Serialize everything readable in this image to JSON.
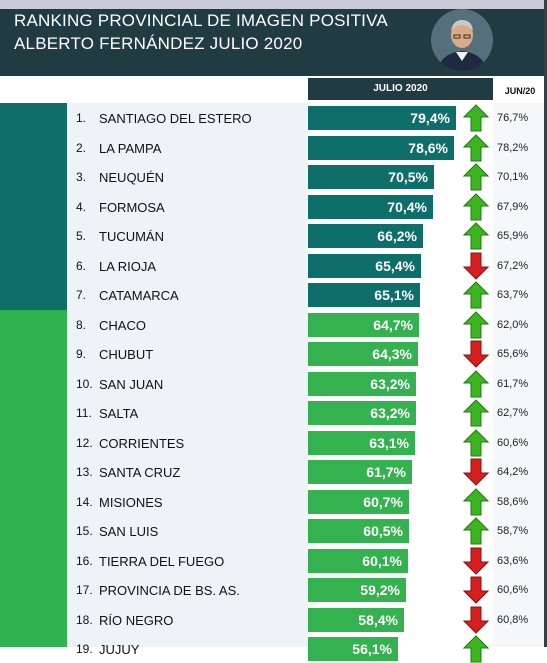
{
  "header": {
    "title_line1": "RANKING PROVINCIAL DE IMAGEN POSITIVA",
    "title_line2": "ALBERTO FERNÁNDEZ JULIO 2020"
  },
  "columns": {
    "current": "JULIO 2020",
    "previous": "JUN/20"
  },
  "colors": {
    "header": "#213b43",
    "teal": "#0e6e6a",
    "green": "#34b24f",
    "up": "#3cb521",
    "down": "#d61f1f"
  },
  "chart_data": {
    "type": "bar",
    "title": "RANKING PROVINCIAL DE IMAGEN POSITIVA ALBERTO FERNÁNDEZ JULIO 2020",
    "unit": "%",
    "rows": [
      {
        "rank": "1.",
        "name": "SANTIAGO DEL ESTERO",
        "value": 79.4,
        "label": "79,4%",
        "prev": "76,7%",
        "trend": "up",
        "group": "teal"
      },
      {
        "rank": "2.",
        "name": "LA PAMPA",
        "value": 78.6,
        "label": "78,6%",
        "prev": "78,2%",
        "trend": "up",
        "group": "teal"
      },
      {
        "rank": "3.",
        "name": "NEUQUÉN",
        "value": 70.5,
        "label": "70,5%",
        "prev": "70,1%",
        "trend": "up",
        "group": "teal"
      },
      {
        "rank": "4.",
        "name": "FORMOSA",
        "value": 70.4,
        "label": "70,4%",
        "prev": "67,9%",
        "trend": "up",
        "group": "teal"
      },
      {
        "rank": "5.",
        "name": "TUCUMÁN",
        "value": 66.2,
        "label": "66,2%",
        "prev": "65,9%",
        "trend": "up",
        "group": "teal"
      },
      {
        "rank": "6.",
        "name": "LA RIOJA",
        "value": 65.4,
        "label": "65,4%",
        "prev": "67,2%",
        "trend": "down",
        "group": "teal"
      },
      {
        "rank": "7.",
        "name": "CATAMARCA",
        "value": 65.1,
        "label": "65,1%",
        "prev": "63,7%",
        "trend": "up",
        "group": "teal"
      },
      {
        "rank": "8.",
        "name": "CHACO",
        "value": 64.7,
        "label": "64,7%",
        "prev": "62,0%",
        "trend": "up",
        "group": "green"
      },
      {
        "rank": "9.",
        "name": "CHUBUT",
        "value": 64.3,
        "label": "64,3%",
        "prev": "65,6%",
        "trend": "down",
        "group": "green"
      },
      {
        "rank": "10.",
        "name": "SAN JUAN",
        "value": 63.2,
        "label": "63,2%",
        "prev": "61,7%",
        "trend": "up",
        "group": "green"
      },
      {
        "rank": "11.",
        "name": "SALTA",
        "value": 63.2,
        "label": "63,2%",
        "prev": "62,7%",
        "trend": "up",
        "group": "green"
      },
      {
        "rank": "12.",
        "name": "CORRIENTES",
        "value": 63.1,
        "label": "63,1%",
        "prev": "60,6%",
        "trend": "up",
        "group": "green"
      },
      {
        "rank": "13.",
        "name": "SANTA CRUZ",
        "value": 61.7,
        "label": "61,7%",
        "prev": "64,2%",
        "trend": "down",
        "group": "green"
      },
      {
        "rank": "14.",
        "name": "MISIONES",
        "value": 60.7,
        "label": "60,7%",
        "prev": "58,6%",
        "trend": "up",
        "group": "green"
      },
      {
        "rank": "15.",
        "name": "SAN LUIS",
        "value": 60.5,
        "label": "60,5%",
        "prev": "58,7%",
        "trend": "up",
        "group": "green"
      },
      {
        "rank": "16.",
        "name": "TIERRA DEL FUEGO",
        "value": 60.1,
        "label": "60,1%",
        "prev": "63,6%",
        "trend": "down",
        "group": "green"
      },
      {
        "rank": "17.",
        "name": "PROVINCIA DE BS. AS.",
        "value": 59.2,
        "label": "59,2%",
        "prev": "60,6%",
        "trend": "down",
        "group": "green"
      },
      {
        "rank": "18.",
        "name": "RÍO NEGRO",
        "value": 58.4,
        "label": "58,4%",
        "prev": "60,8%",
        "trend": "down",
        "group": "green"
      },
      {
        "rank": "19.",
        "name": "JUJUY",
        "value": 56.1,
        "label": "56,1%",
        "prev": "",
        "trend": "up",
        "group": "green"
      }
    ]
  }
}
